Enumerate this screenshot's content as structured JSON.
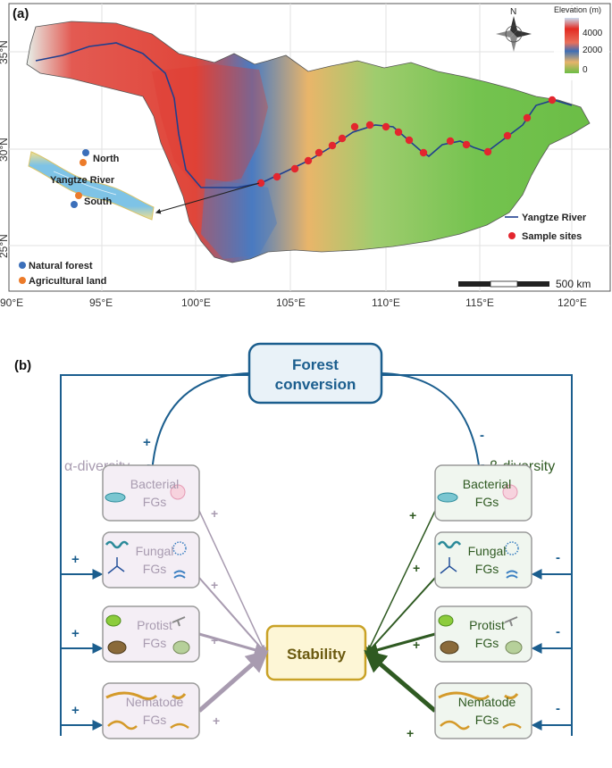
{
  "panel_a": {
    "label": "(a)",
    "legend": {
      "title": "Elevation (m)",
      "ticks": [
        "4000",
        "2000",
        "0"
      ],
      "gradient": [
        "#c9dcef",
        "#e32b22",
        "#e8705c",
        "#3e6eb4",
        "#e7b36a",
        "#6bbd46"
      ]
    },
    "north_label": "N",
    "axis_x": [
      "90°E",
      "95°E",
      "100°E",
      "105°E",
      "110°E",
      "115°E",
      "120°E"
    ],
    "axis_y": [
      "35°N",
      "30°N",
      "25°N"
    ],
    "inset": {
      "north": "North",
      "river": "Yangtze River",
      "south": "South"
    },
    "site_legend": [
      {
        "label": "Natural forest",
        "color": "#3b6fba"
      },
      {
        "label": "Agricultural land",
        "color": "#ec7b2a"
      }
    ],
    "map_legend": {
      "river": "Yangtze River",
      "sites": "Sample sites"
    },
    "scale_bar": "500 km",
    "colors": {
      "river": "#1f3f8f",
      "site": "#e3262e",
      "land_low": "#6bbd46"
    }
  },
  "panel_b": {
    "label": "(b)",
    "forest_conversion": [
      "Forest",
      "conversion"
    ],
    "stability": "Stability",
    "alpha": {
      "title": "α-diversity",
      "sign": "+"
    },
    "beta": {
      "title": "β-diversity",
      "sign": "-"
    },
    "left_boxes": [
      {
        "name": "Bacterial",
        "sub": "FGs"
      },
      {
        "name": "Fungal",
        "sub": "FGs"
      },
      {
        "name": "Protist",
        "sub": "FGs"
      },
      {
        "name": "Nematode",
        "sub": "FGs"
      }
    ],
    "right_boxes": [
      {
        "name": "Bacterial",
        "sub": "FGs"
      },
      {
        "name": "Fungal",
        "sub": "FGs"
      },
      {
        "name": "Protist",
        "sub": "FGs"
      },
      {
        "name": "Nematode",
        "sub": "FGs"
      }
    ],
    "left_outer_signs": [
      "+",
      "+",
      "+"
    ],
    "right_outer_signs": [
      "-",
      "-",
      "-"
    ],
    "left_link_signs": [
      "+",
      "+",
      "+",
      "+"
    ],
    "right_link_signs": [
      "+",
      "+",
      "+",
      "+"
    ],
    "colors": {
      "blue": "#1b5e8e",
      "purple": "#a89bb0",
      "green": "#2f5a22",
      "gold": "#c9a227",
      "stability_fill": "#fdf6d6",
      "forest_fill": "#e9f2f8"
    }
  }
}
